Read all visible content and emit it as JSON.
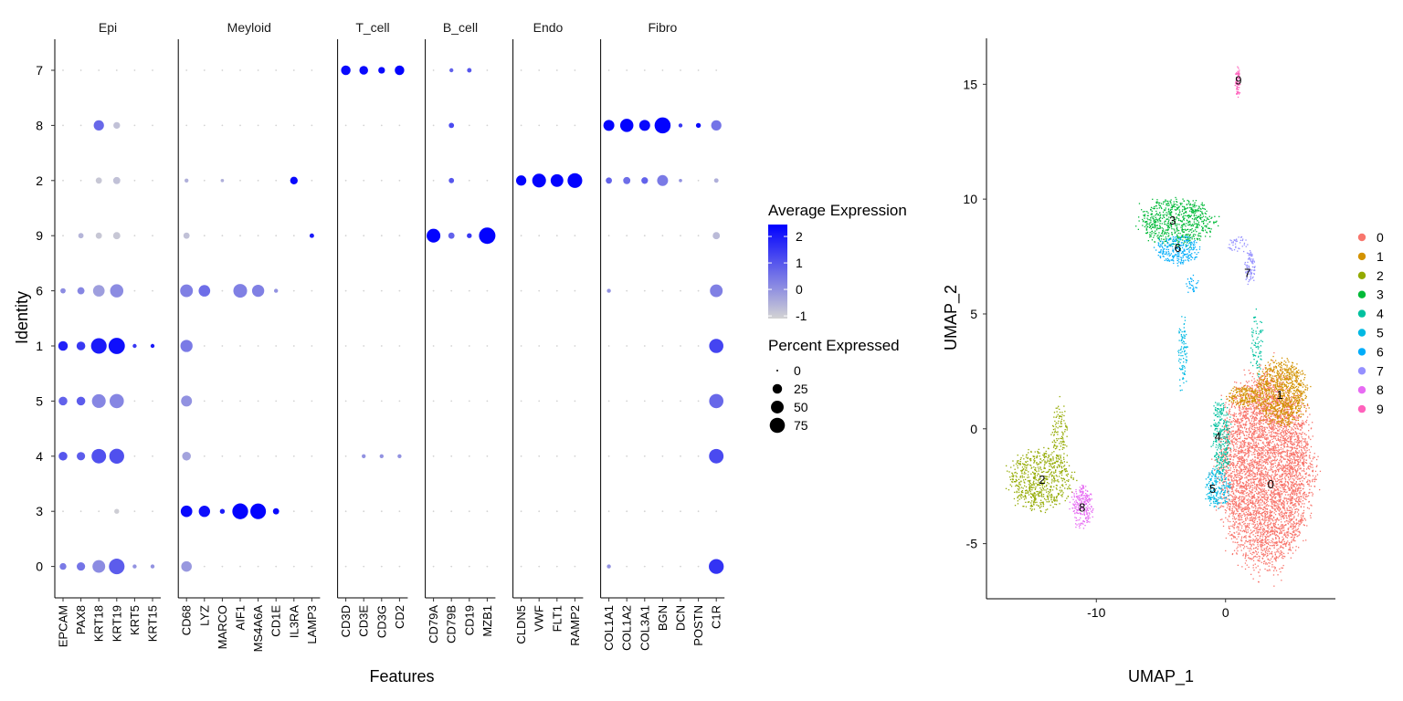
{
  "chart_data": [
    {
      "type": "dotplot",
      "xlabel": "Features",
      "ylabel": "Identity",
      "groups": [
        {
          "name": "Epi",
          "features": [
            "EPCAM",
            "PAX8",
            "KRT18",
            "KRT19",
            "KRT5",
            "KRT15"
          ]
        },
        {
          "name": "Meyloid",
          "features": [
            "CD68",
            "LYZ",
            "MARCO",
            "AIF1",
            "MS4A6A",
            "CD1E",
            "IL3RA",
            "LAMP3"
          ]
        },
        {
          "name": "T_cell",
          "features": [
            "CD3D",
            "CD3E",
            "CD3G",
            "CD2"
          ]
        },
        {
          "name": "B_cell",
          "features": [
            "CD79A",
            "CD79B",
            "CD19",
            "MZB1"
          ]
        },
        {
          "name": "Endo",
          "features": [
            "CLDN5",
            "VWF",
            "FLT1",
            "RAMP2"
          ]
        },
        {
          "name": "Fibro",
          "features": [
            "COL1A1",
            "COL1A2",
            "COL3A1",
            "BGN",
            "DCN",
            "POSTN",
            "C1R"
          ]
        }
      ],
      "identities": [
        "7",
        "8",
        "2",
        "9",
        "6",
        "1",
        "5",
        "4",
        "3",
        "0"
      ],
      "dots": [
        {
          "id": "8",
          "f": "KRT18",
          "pct": 30,
          "avg": 0.7
        },
        {
          "id": "8",
          "f": "KRT19",
          "pct": 10,
          "avg": -0.8
        },
        {
          "id": "2",
          "f": "KRT18",
          "pct": 8,
          "avg": -0.9
        },
        {
          "id": "2",
          "f": "KRT19",
          "pct": 12,
          "avg": -0.8
        },
        {
          "id": "9",
          "f": "PAX8",
          "pct": 5,
          "avg": -0.6
        },
        {
          "id": "9",
          "f": "KRT18",
          "pct": 8,
          "avg": -0.9
        },
        {
          "id": "9",
          "f": "KRT19",
          "pct": 12,
          "avg": -0.9
        },
        {
          "id": "6",
          "f": "EPCAM",
          "pct": 5,
          "avg": 0.1
        },
        {
          "id": "6",
          "f": "PAX8",
          "pct": 12,
          "avg": 0.2
        },
        {
          "id": "6",
          "f": "KRT18",
          "pct": 40,
          "avg": -0.2
        },
        {
          "id": "6",
          "f": "KRT19",
          "pct": 55,
          "avg": 0.1
        },
        {
          "id": "1",
          "f": "EPCAM",
          "pct": 25,
          "avg": 1.9
        },
        {
          "id": "1",
          "f": "PAX8",
          "pct": 20,
          "avg": 1.5
        },
        {
          "id": "1",
          "f": "KRT18",
          "pct": 80,
          "avg": 2.0
        },
        {
          "id": "1",
          "f": "KRT19",
          "pct": 88,
          "avg": 2.2
        },
        {
          "id": "1",
          "f": "KRT5",
          "pct": 2,
          "avg": 1.5
        },
        {
          "id": "1",
          "f": "KRT15",
          "pct": 2,
          "avg": 2.0
        },
        {
          "id": "5",
          "f": "EPCAM",
          "pct": 20,
          "avg": 0.8
        },
        {
          "id": "5",
          "f": "PAX8",
          "pct": 20,
          "avg": 0.9
        },
        {
          "id": "5",
          "f": "KRT18",
          "pct": 60,
          "avg": 0.2
        },
        {
          "id": "5",
          "f": "KRT19",
          "pct": 65,
          "avg": 0.2
        },
        {
          "id": "4",
          "f": "EPCAM",
          "pct": 20,
          "avg": 1.0
        },
        {
          "id": "4",
          "f": "PAX8",
          "pct": 18,
          "avg": 0.9
        },
        {
          "id": "4",
          "f": "KRT18",
          "pct": 68,
          "avg": 1.1
        },
        {
          "id": "4",
          "f": "KRT19",
          "pct": 72,
          "avg": 1.1
        },
        {
          "id": "3",
          "f": "KRT19",
          "pct": 4,
          "avg": -1.0
        },
        {
          "id": "0",
          "f": "EPCAM",
          "pct": 10,
          "avg": 0.4
        },
        {
          "id": "0",
          "f": "PAX8",
          "pct": 18,
          "avg": 0.5
        },
        {
          "id": "0",
          "f": "KRT18",
          "pct": 50,
          "avg": 0.1
        },
        {
          "id": "0",
          "f": "KRT19",
          "pct": 80,
          "avg": 0.9
        },
        {
          "id": "0",
          "f": "KRT5",
          "pct": 2,
          "avg": 0.0
        },
        {
          "id": "0",
          "f": "KRT15",
          "pct": 2,
          "avg": 0.0
        },
        {
          "id": "6",
          "f": "CD68",
          "pct": 50,
          "avg": 0.3
        },
        {
          "id": "6",
          "f": "LYZ",
          "pct": 40,
          "avg": 0.6
        },
        {
          "id": "6",
          "f": "AIF1",
          "pct": 60,
          "avg": 0.3
        },
        {
          "id": "6",
          "f": "MS4A6A",
          "pct": 45,
          "avg": 0.3
        },
        {
          "id": "6",
          "f": "CD1E",
          "pct": 2,
          "avg": 0.0
        },
        {
          "id": "1",
          "f": "CD68",
          "pct": 45,
          "avg": 0.4
        },
        {
          "id": "5",
          "f": "CD68",
          "pct": 35,
          "avg": 0.0
        },
        {
          "id": "4",
          "f": "CD68",
          "pct": 20,
          "avg": -0.3
        },
        {
          "id": "0",
          "f": "CD68",
          "pct": 32,
          "avg": -0.1
        },
        {
          "id": "9",
          "f": "CD68",
          "pct": 8,
          "avg": -0.8
        },
        {
          "id": "2",
          "f": "CD68",
          "pct": 2,
          "avg": -0.5
        },
        {
          "id": "2",
          "f": "MARCO",
          "pct": 1,
          "avg": -0.5
        },
        {
          "id": "2",
          "f": "IL3RA",
          "pct": 14,
          "avg": 2.3
        },
        {
          "id": "9",
          "f": "LAMP3",
          "pct": 3,
          "avg": 2.0
        },
        {
          "id": "3",
          "f": "CD68",
          "pct": 40,
          "avg": 2.3
        },
        {
          "id": "3",
          "f": "LYZ",
          "pct": 38,
          "avg": 2.2
        },
        {
          "id": "3",
          "f": "MARCO",
          "pct": 4,
          "avg": 2.0
        },
        {
          "id": "3",
          "f": "AIF1",
          "pct": 82,
          "avg": 2.4
        },
        {
          "id": "3",
          "f": "MS4A6A",
          "pct": 80,
          "avg": 2.4
        },
        {
          "id": "3",
          "f": "CD1E",
          "pct": 8,
          "avg": 2.3
        },
        {
          "id": "7",
          "f": "CD3D",
          "pct": 25,
          "avg": 2.3
        },
        {
          "id": "7",
          "f": "CD3E",
          "pct": 20,
          "avg": 2.3
        },
        {
          "id": "7",
          "f": "CD3G",
          "pct": 10,
          "avg": 2.3
        },
        {
          "id": "7",
          "f": "CD2",
          "pct": 25,
          "avg": 2.4
        },
        {
          "id": "4",
          "f": "CD3E",
          "pct": 2,
          "avg": 0.0
        },
        {
          "id": "4",
          "f": "CD3G",
          "pct": 2,
          "avg": 0.0
        },
        {
          "id": "4",
          "f": "CD2",
          "pct": 2,
          "avg": 0.0
        },
        {
          "id": "9",
          "f": "CD79A",
          "pct": 60,
          "avg": 2.4
        },
        {
          "id": "9",
          "f": "CD79B",
          "pct": 8,
          "avg": 0.8
        },
        {
          "id": "9",
          "f": "CD19",
          "pct": 4,
          "avg": 1.5
        },
        {
          "id": "9",
          "f": "MZB1",
          "pct": 90,
          "avg": 2.4
        },
        {
          "id": "7",
          "f": "CD79B",
          "pct": 2,
          "avg": 0.8
        },
        {
          "id": "7",
          "f": "CD19",
          "pct": 3,
          "avg": 1.0
        },
        {
          "id": "8",
          "f": "CD79B",
          "pct": 5,
          "avg": 1.2
        },
        {
          "id": "2",
          "f": "CD79B",
          "pct": 5,
          "avg": 1.0
        },
        {
          "id": "2",
          "f": "CLDN5",
          "pct": 30,
          "avg": 2.4
        },
        {
          "id": "2",
          "f": "VWF",
          "pct": 60,
          "avg": 2.4
        },
        {
          "id": "2",
          "f": "FLT1",
          "pct": 50,
          "avg": 2.4
        },
        {
          "id": "2",
          "f": "RAMP2",
          "pct": 70,
          "avg": 2.4
        },
        {
          "id": "8",
          "f": "COL1A1",
          "pct": 35,
          "avg": 2.4
        },
        {
          "id": "8",
          "f": "COL1A2",
          "pct": 55,
          "avg": 2.4
        },
        {
          "id": "8",
          "f": "COL3A1",
          "pct": 35,
          "avg": 2.3
        },
        {
          "id": "8",
          "f": "BGN",
          "pct": 85,
          "avg": 2.4
        },
        {
          "id": "8",
          "f": "DCN",
          "pct": 2,
          "avg": 1.5
        },
        {
          "id": "8",
          "f": "POSTN",
          "pct": 4,
          "avg": 2.3
        },
        {
          "id": "8",
          "f": "C1R",
          "pct": 30,
          "avg": 0.5
        },
        {
          "id": "2",
          "f": "COL1A1",
          "pct": 8,
          "avg": 0.8
        },
        {
          "id": "2",
          "f": "COL1A2",
          "pct": 12,
          "avg": 0.6
        },
        {
          "id": "2",
          "f": "COL3A1",
          "pct": 10,
          "avg": 0.8
        },
        {
          "id": "2",
          "f": "BGN",
          "pct": 35,
          "avg": 0.4
        },
        {
          "id": "2",
          "f": "DCN",
          "pct": 1,
          "avg": 0.0
        },
        {
          "id": "9",
          "f": "C1R",
          "pct": 12,
          "avg": -0.7
        },
        {
          "id": "6",
          "f": "C1R",
          "pct": 50,
          "avg": 0.3
        },
        {
          "id": "1",
          "f": "C1R",
          "pct": 65,
          "avg": 1.3
        },
        {
          "id": "5",
          "f": "C1R",
          "pct": 65,
          "avg": 0.7
        },
        {
          "id": "4",
          "f": "C1R",
          "pct": 68,
          "avg": 1.2
        },
        {
          "id": "0",
          "f": "C1R",
          "pct": 72,
          "avg": 1.6
        },
        {
          "id": "2",
          "f": "C1R",
          "pct": 3,
          "avg": -0.5
        },
        {
          "id": "6",
          "f": "COL1A1",
          "pct": 2,
          "avg": 0.0
        },
        {
          "id": "0",
          "f": "COL1A1",
          "pct": 2,
          "avg": 0.0
        }
      ],
      "color_scale": {
        "title": "Average Expression",
        "ticks": [
          2,
          1,
          0,
          -1
        ],
        "min": -1.1,
        "max": 2.45,
        "low_color": "#d3d3d3",
        "high_color": "#0000ff"
      },
      "size_scale": {
        "title": "Percent Expressed",
        "ticks": [
          0,
          25,
          50,
          75
        ]
      }
    },
    {
      "type": "scatter",
      "xlabel": "UMAP_1",
      "ylabel": "UMAP_2",
      "xticks": [
        -10,
        0
      ],
      "yticks": [
        -5,
        0,
        5,
        10,
        15
      ],
      "xlim": [
        -18.5,
        8.5
      ],
      "ylim": [
        -7.4,
        17.0
      ],
      "legend_position": "right",
      "clusters": [
        {
          "name": "0",
          "color": "#f8766d",
          "label_xy": [
            3.5,
            -2.4
          ],
          "blobs": [
            [
              3.1,
              -1.8,
              3.5,
              4.0,
              4800
            ]
          ]
        },
        {
          "name": "1",
          "color": "#d39200",
          "label_xy": [
            4.2,
            1.5
          ],
          "blobs": [
            [
              4.3,
              1.6,
              1.9,
              1.4,
              900
            ],
            [
              1.5,
              1.4,
              1.2,
              0.4,
              200
            ]
          ]
        },
        {
          "name": "2",
          "color": "#93aa00",
          "label_xy": [
            -14.2,
            -2.2
          ],
          "blobs": [
            [
              -14.3,
              -2.2,
              2.4,
              1.3,
              650
            ],
            [
              -12.8,
              -0.3,
              0.6,
              1.3,
              120
            ]
          ]
        },
        {
          "name": "3",
          "color": "#00ba38",
          "label_xy": [
            -4.1,
            9.1
          ],
          "blobs": [
            [
              -3.8,
              9.0,
              2.8,
              1.0,
              700
            ]
          ]
        },
        {
          "name": "4",
          "color": "#00c19f",
          "label_xy": [
            -0.6,
            -0.3
          ],
          "blobs": [
            [
              -0.3,
              -0.4,
              0.7,
              1.7,
              280
            ],
            [
              2.4,
              3.7,
              0.5,
              1.4,
              80
            ]
          ]
        },
        {
          "name": "5",
          "color": "#00b9e3",
          "label_xy": [
            -1.0,
            -2.6
          ],
          "blobs": [
            [
              -0.6,
              -2.6,
              1.0,
              0.8,
              200
            ],
            [
              -3.3,
              3.3,
              0.35,
              1.5,
              100
            ]
          ]
        },
        {
          "name": "6",
          "color": "#00adfa",
          "label_xy": [
            -3.7,
            7.9
          ],
          "blobs": [
            [
              -3.7,
              7.8,
              1.6,
              0.6,
              260
            ],
            [
              -2.6,
              6.3,
              0.5,
              0.4,
              30
            ]
          ]
        },
        {
          "name": "7",
          "color": "#9590ff",
          "label_xy": [
            1.7,
            6.8
          ],
          "blobs": [
            [
              1.9,
              7.0,
              0.4,
              0.7,
              90
            ],
            [
              1.0,
              8.0,
              0.8,
              0.4,
              40
            ]
          ]
        },
        {
          "name": "8",
          "color": "#e76bf3",
          "label_xy": [
            -11.1,
            -3.4
          ],
          "blobs": [
            [
              -11.1,
              -3.4,
              0.8,
              0.9,
              230
            ]
          ]
        },
        {
          "name": "9",
          "color": "#ff62bc",
          "label_xy": [
            1.0,
            15.2
          ],
          "blobs": [
            [
              0.95,
              15.1,
              0.18,
              0.7,
              70
            ]
          ]
        }
      ]
    }
  ]
}
